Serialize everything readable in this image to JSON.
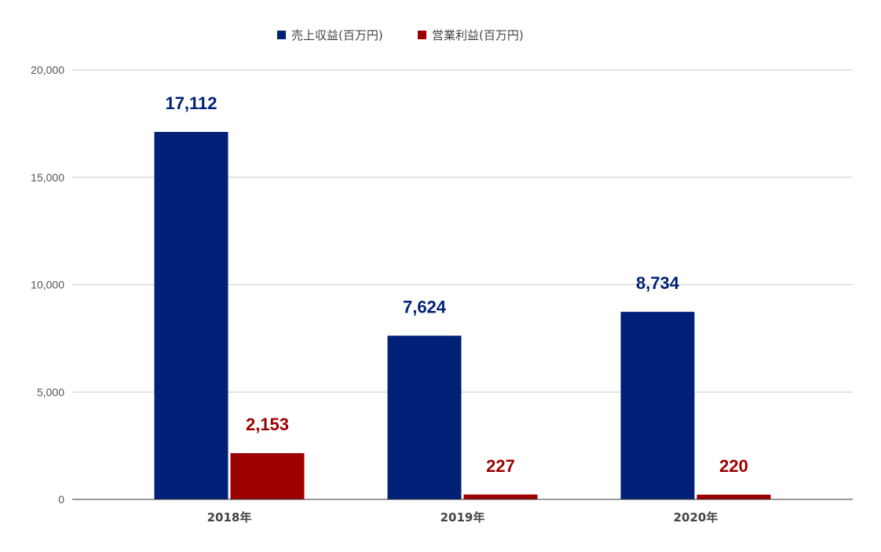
{
  "chart_data": {
    "type": "bar",
    "categories": [
      "2018年",
      "2019年",
      "2020年"
    ],
    "series": [
      {
        "name": "売上収益(百万円)",
        "color": "#012178",
        "values": [
          17112,
          7624,
          8734
        ],
        "labels": [
          "17,112",
          "7,624",
          "8,734"
        ]
      },
      {
        "name": "営業利益(百万円)",
        "color": "#9c0001",
        "values": [
          2153,
          227,
          220
        ],
        "labels": [
          "2,153",
          "227",
          "220"
        ]
      }
    ],
    "ylim": [
      0,
      20000
    ],
    "yticks": [
      0,
      5000,
      10000,
      15000,
      20000
    ],
    "ytick_labels": [
      "0",
      "5,000",
      "10,000",
      "15,000",
      "20,000"
    ],
    "grid": true,
    "legend_position": "top-center",
    "title": "",
    "xlabel": "",
    "ylabel": ""
  }
}
